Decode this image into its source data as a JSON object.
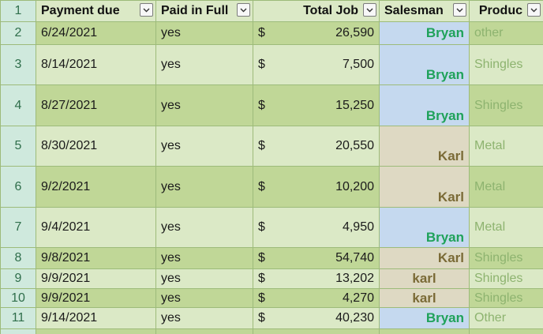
{
  "column_headers": {
    "rownum": "1",
    "payment_due": "Payment due",
    "paid_in_full": "Paid in Full",
    "total_job": "Total Job",
    "salesman": "Salesman",
    "product": "Produc"
  },
  "colors": {
    "band_dark": "#c0d797",
    "band_light": "#dbe9c6",
    "salesman_bryan_bg": "#c5d9ef",
    "salesman_karl_bg": "#ded9c3",
    "bryan_text": "#1fa25a",
    "karl_text": "#7a6a36"
  },
  "rows": [
    {
      "row": "2",
      "payment_due": "6/24/2021",
      "paid": "yes",
      "currency": "$",
      "total": "26,590",
      "salesman": "Bryan",
      "product": "other"
    },
    {
      "row": "3",
      "payment_due": "8/14/2021",
      "paid": "yes",
      "currency": "$",
      "total": "7,500",
      "salesman": "Bryan",
      "product": "Shingles"
    },
    {
      "row": "4",
      "payment_due": "8/27/2021",
      "paid": "yes",
      "currency": "$",
      "total": "15,250",
      "salesman": "Bryan",
      "product": "Shingles"
    },
    {
      "row": "5",
      "payment_due": "8/30/2021",
      "paid": "yes",
      "currency": "$",
      "total": "20,550",
      "salesman": "Karl",
      "product": "Metal"
    },
    {
      "row": "6",
      "payment_due": "9/2/2021",
      "paid": "yes",
      "currency": "$",
      "total": "10,200",
      "salesman": "Karl",
      "product": "Metal"
    },
    {
      "row": "7",
      "payment_due": "9/4/2021",
      "paid": "yes",
      "currency": "$",
      "total": "4,950",
      "salesman": "Bryan",
      "product": "Metal"
    },
    {
      "row": "8",
      "payment_due": "9/8/2021",
      "paid": "yes",
      "currency": "$",
      "total": "54,740",
      "salesman": "Karl",
      "product": "Shingles"
    },
    {
      "row": "9",
      "payment_due": "9/9/2021",
      "paid": "yes",
      "currency": "$",
      "total": "13,202",
      "salesman": "karl",
      "product": "Shingles"
    },
    {
      "row": "10",
      "payment_due": "9/9/2021",
      "paid": "yes",
      "currency": "$",
      "total": "4,270",
      "salesman": "karl",
      "product": "Shingles"
    },
    {
      "row": "11",
      "payment_due": "9/14/2021",
      "paid": "yes",
      "currency": "$",
      "total": "40,230",
      "salesman": "Bryan",
      "product": "Other"
    }
  ]
}
